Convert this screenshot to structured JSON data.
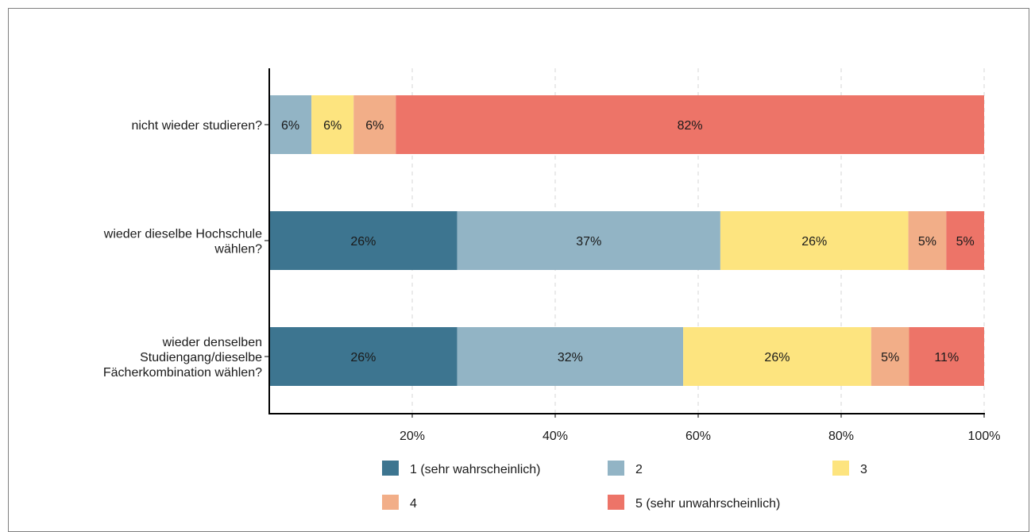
{
  "chart_data": {
    "type": "bar",
    "orientation": "horizontal",
    "stacked": true,
    "categories": [
      "nicht wieder studieren?",
      "wieder dieselbe Hochschule wählen?",
      "wieder denselben Studiengang/dieselbe Fächerkombination wählen?"
    ],
    "category_label_lines": [
      [
        "nicht wieder studieren?"
      ],
      [
        "wieder dieselbe Hochschule",
        "wählen?"
      ],
      [
        "wieder denselben",
        "Studiengang/dieselbe",
        "Fächerkombination wählen?"
      ]
    ],
    "series": [
      {
        "name": "1 (sehr wahrscheinlich)",
        "color": "#3d7590",
        "values": [
          0,
          26.3,
          26.3
        ],
        "labels": [
          "",
          "26%",
          "26%"
        ]
      },
      {
        "name": "2",
        "color": "#92b4c5",
        "values": [
          5.9,
          36.8,
          31.6
        ],
        "labels": [
          "6%",
          "37%",
          "32%"
        ]
      },
      {
        "name": "3",
        "color": "#fde47f",
        "values": [
          5.9,
          26.3,
          26.3
        ],
        "labels": [
          "6%",
          "26%",
          "26%"
        ]
      },
      {
        "name": "4",
        "color": "#f2ae88",
        "values": [
          5.9,
          5.3,
          5.3
        ],
        "labels": [
          "6%",
          "5%",
          "5%"
        ]
      },
      {
        "name": "5 (sehr unwahrscheinlich)",
        "color": "#ed7468",
        "values": [
          82.3,
          5.3,
          10.5
        ],
        "labels": [
          "82%",
          "5%",
          "11%"
        ]
      }
    ],
    "xlim": [
      0,
      100
    ],
    "xticks": [
      20,
      40,
      60,
      80,
      100
    ],
    "xtick_labels": [
      "20%",
      "40%",
      "60%",
      "80%",
      "100%"
    ],
    "grid": "vertical dashed",
    "legend_position": "bottom"
  }
}
